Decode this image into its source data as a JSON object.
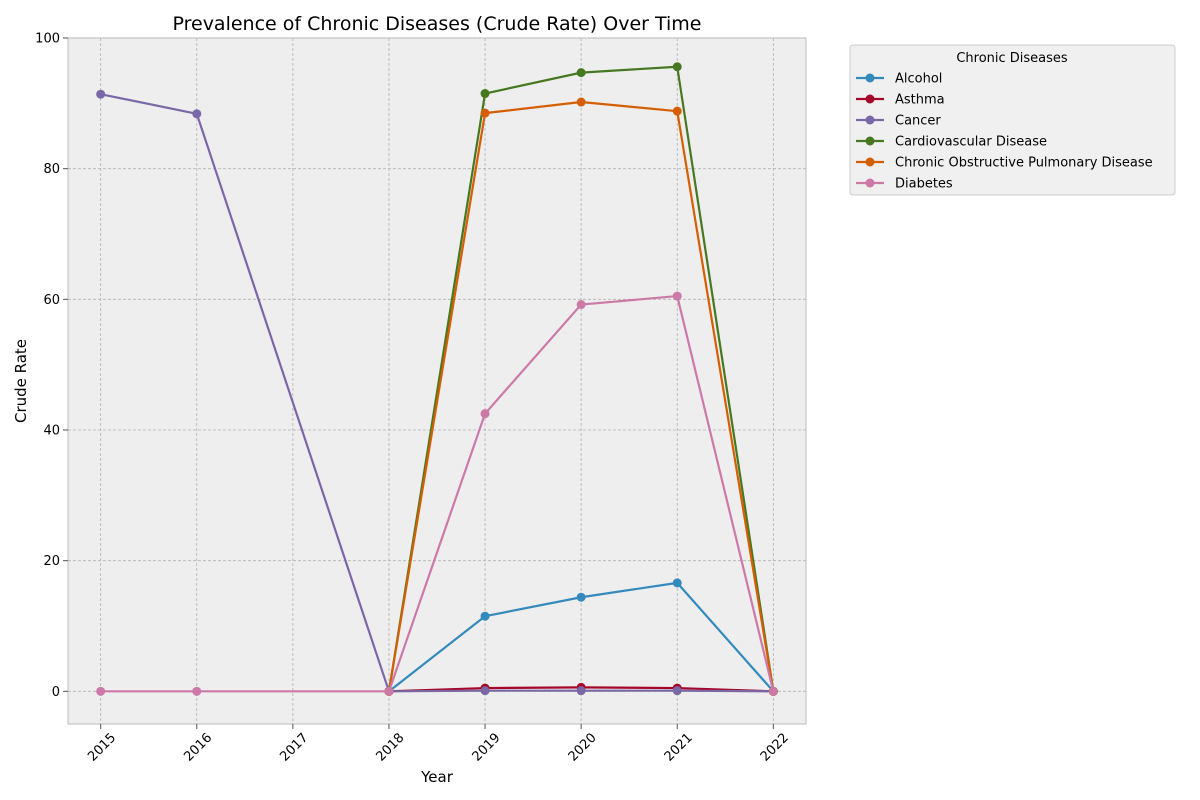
{
  "chart_data": {
    "type": "line",
    "title": "Prevalence of Chronic Diseases (Crude Rate) Over Time",
    "xlabel": "Year",
    "ylabel": "Crude Rate",
    "xlim": [
      2014.66,
      2022.34
    ],
    "ylim": [
      -5,
      100
    ],
    "x_ticks": [
      "2015",
      "2016",
      "2017",
      "2018",
      "2019",
      "2020",
      "2021",
      "2022"
    ],
    "y_ticks": [
      "0",
      "20",
      "40",
      "60",
      "80",
      "100"
    ],
    "grid": true,
    "legend": {
      "title": "Chronic Diseases",
      "placement": "outside-top-right"
    },
    "series": [
      {
        "name": "Alcohol",
        "color": "#348abd",
        "points": [
          [
            2018,
            0
          ],
          [
            2019,
            11.5
          ],
          [
            2020,
            14.4
          ],
          [
            2021,
            16.6
          ],
          [
            2022,
            0
          ]
        ]
      },
      {
        "name": "Asthma",
        "color": "#a60628",
        "points": [
          [
            2018,
            0
          ],
          [
            2019,
            0.5
          ],
          [
            2020,
            0.6
          ],
          [
            2021,
            0.5
          ],
          [
            2022,
            0
          ]
        ]
      },
      {
        "name": "Cancer",
        "color": "#7a68a6",
        "points": [
          [
            2015,
            91.4
          ],
          [
            2016,
            88.4
          ],
          [
            2018,
            0
          ],
          [
            2019,
            0.1
          ],
          [
            2020,
            0.1
          ],
          [
            2021,
            0.1
          ],
          [
            2022,
            0
          ]
        ]
      },
      {
        "name": "Cardiovascular Disease",
        "color": "#467821",
        "points": [
          [
            2018,
            0
          ],
          [
            2019,
            91.5
          ],
          [
            2020,
            94.7
          ],
          [
            2021,
            95.6
          ],
          [
            2022,
            0
          ]
        ]
      },
      {
        "name": "Chronic Obstructive Pulmonary Disease",
        "color": "#d55e00",
        "points": [
          [
            2018,
            0
          ],
          [
            2019,
            88.5
          ],
          [
            2020,
            90.2
          ],
          [
            2021,
            88.8
          ],
          [
            2022,
            0
          ]
        ]
      },
      {
        "name": "Diabetes",
        "color": "#cc79a7",
        "points": [
          [
            2015,
            0
          ],
          [
            2016,
            0
          ],
          [
            2018,
            0
          ],
          [
            2019,
            42.5
          ],
          [
            2020,
            59.2
          ],
          [
            2021,
            60.5
          ],
          [
            2022,
            0
          ]
        ]
      }
    ]
  }
}
